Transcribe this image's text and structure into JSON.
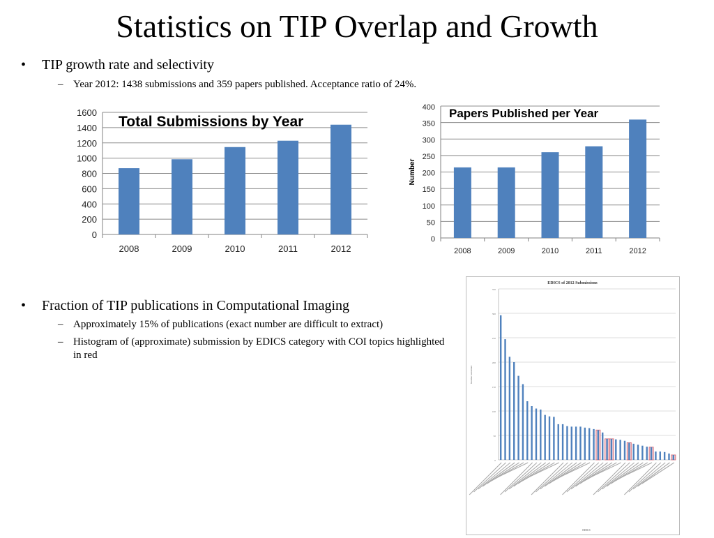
{
  "slide": {
    "title": "Statistics on TIP Overlap and Growth",
    "bullets": [
      {
        "text": "TIP growth rate and selectivity",
        "subitems": [
          "Year 2012: 1438 submissions and 359 papers published. Acceptance ratio of 24%."
        ]
      },
      {
        "text": "Fraction of TIP publications in Computational Imaging",
        "subitems": [
          "Approximately 15% of publications (exact number are difficult to extract)",
          "Histogram of (approximate) submission by EDICS category with COI topics highlighted in red"
        ]
      }
    ],
    "bullet_glyph": "•",
    "dash_glyph": "–"
  },
  "colors": {
    "bar": "#4f81bd",
    "highlight": "#d9737f",
    "grid": "#8c8c8c",
    "axis": "#808080"
  },
  "chart_data": [
    {
      "type": "bar",
      "title": "Total Submissions by Year",
      "categories": [
        "2008",
        "2009",
        "2010",
        "2011",
        "2012"
      ],
      "values": [
        868,
        985,
        1145,
        1228,
        1438
      ],
      "xlabel": "",
      "ylabel": "",
      "ylim": [
        0,
        1600
      ],
      "yticks": [
        0,
        200,
        400,
        600,
        800,
        1000,
        1200,
        1400,
        1600
      ],
      "grid": true,
      "legend": "none"
    },
    {
      "type": "bar",
      "title": "Papers Published per Year",
      "categories": [
        "2008",
        "2009",
        "2010",
        "2011",
        "2012"
      ],
      "values": [
        214,
        214,
        260,
        278,
        359
      ],
      "xlabel": "",
      "ylabel": "Number",
      "ylim": [
        0,
        400
      ],
      "yticks": [
        0,
        50,
        100,
        150,
        200,
        250,
        300,
        350,
        400
      ],
      "grid": true,
      "legend": "none"
    },
    {
      "type": "bar",
      "title": "EDICS of 2012 Submissions",
      "xlabel": "EDICS",
      "ylabel": "Number submitted",
      "ylim": [
        0,
        350
      ],
      "yticks": [
        0,
        50,
        100,
        150,
        200,
        250,
        300,
        350
      ],
      "grid": true,
      "legend": "none",
      "note": "category labels illegible in source; COI categories highlighted in red",
      "values": [
        296,
        247,
        211,
        200,
        172,
        155,
        120,
        110,
        105,
        103,
        92,
        89,
        88,
        73,
        73,
        69,
        68,
        68,
        68,
        66,
        65,
        63,
        61,
        56,
        43,
        43,
        42,
        41,
        39,
        35,
        33,
        31,
        29,
        27,
        26,
        17,
        17,
        16,
        13,
        10
      ],
      "highlighted": [
        false,
        false,
        false,
        false,
        false,
        false,
        false,
        false,
        false,
        false,
        false,
        false,
        false,
        false,
        false,
        false,
        false,
        false,
        false,
        false,
        false,
        false,
        true,
        false,
        true,
        true,
        false,
        false,
        false,
        true,
        false,
        false,
        false,
        false,
        true,
        false,
        false,
        false,
        false,
        true
      ]
    }
  ]
}
